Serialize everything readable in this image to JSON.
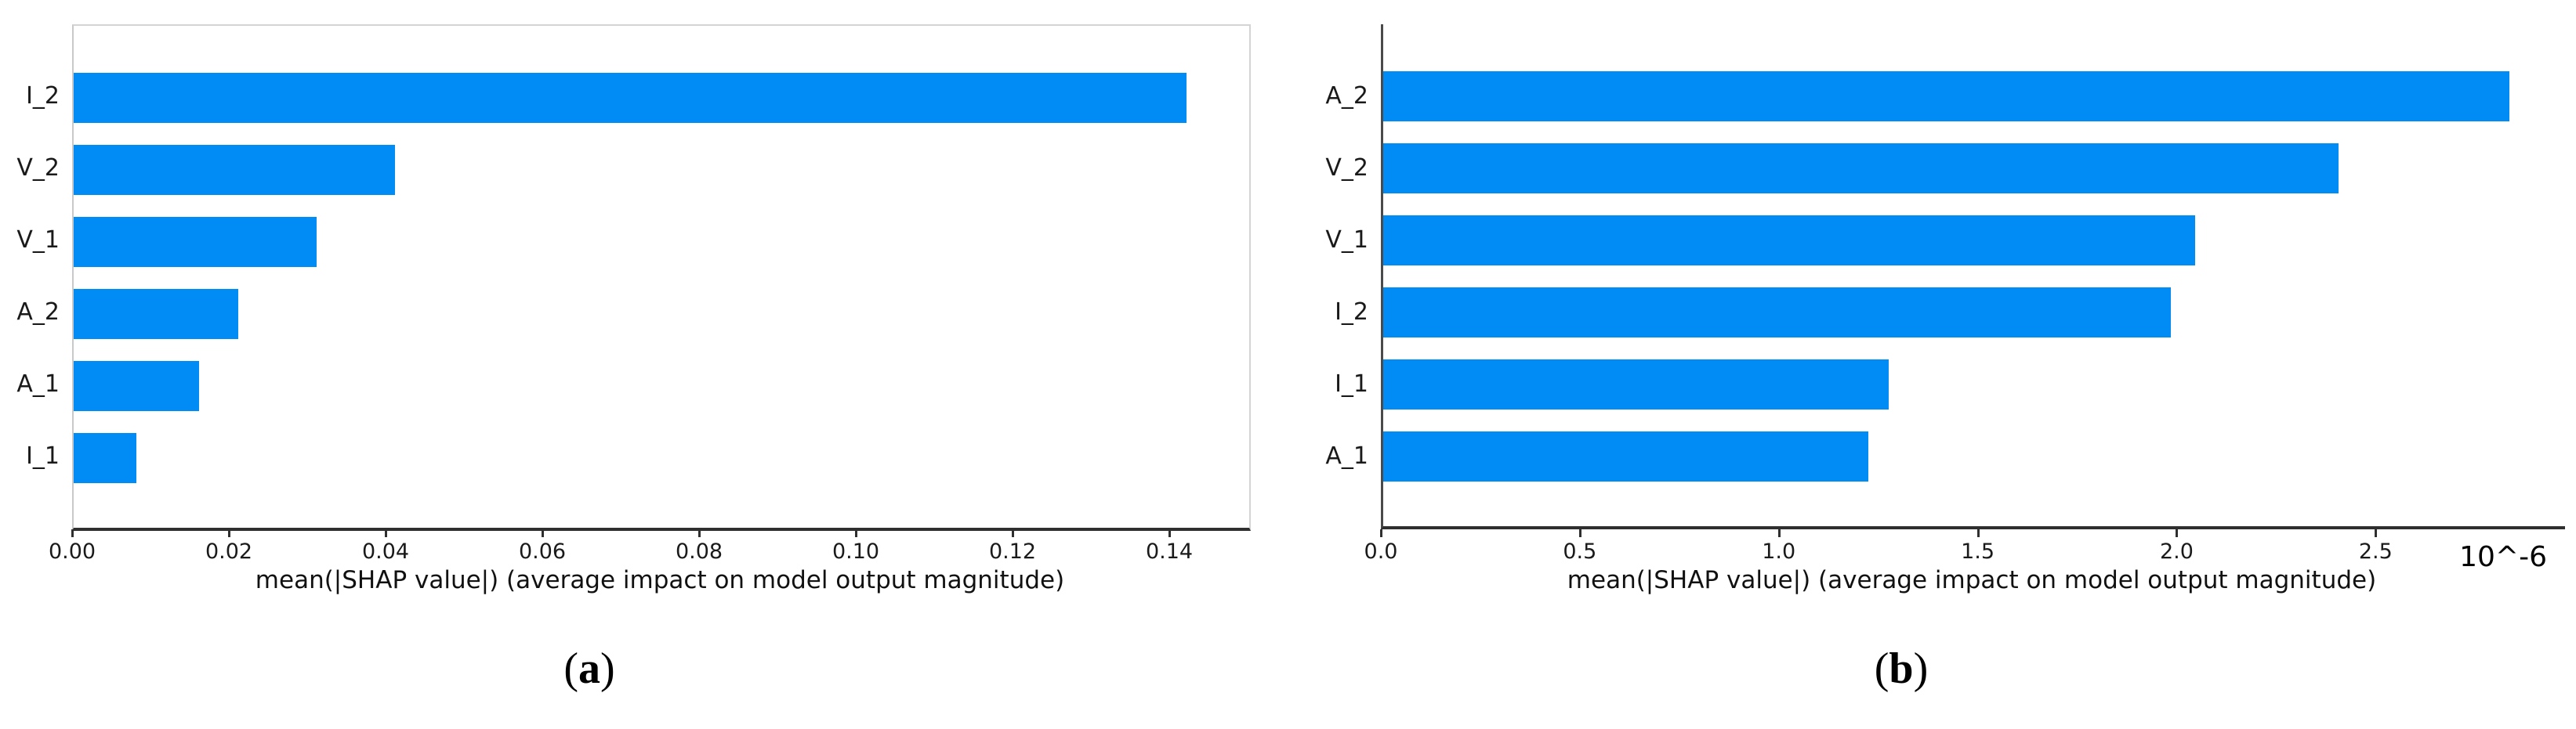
{
  "figure": {
    "captions": [
      {
        "open": "(",
        "letter": "a",
        "close": ")"
      },
      {
        "open": "(",
        "letter": "b",
        "close": ")"
      }
    ]
  },
  "chart_data": [
    {
      "type": "bar",
      "orientation": "horizontal",
      "panel": "a",
      "title": "",
      "categories": [
        "I_2",
        "V_2",
        "V_1",
        "A_2",
        "A_1",
        "I_1"
      ],
      "values": [
        0.142,
        0.041,
        0.031,
        0.021,
        0.016,
        0.008
      ],
      "xlabel": "mean(|SHAP value|) (average impact on model output magnitude)",
      "ylabel": "",
      "xlim": [
        0,
        0.15
      ],
      "xticks": [
        0,
        0.02,
        0.04,
        0.06,
        0.08,
        0.1,
        0.12,
        0.14
      ],
      "xtick_labels": [
        "0.00",
        "0.02",
        "0.04",
        "0.06",
        "0.08",
        "0.10",
        "0.12",
        "0.14"
      ],
      "bar_color": "#008bf5",
      "grid": false,
      "legend": null,
      "scale_note": ""
    },
    {
      "type": "bar",
      "orientation": "horizontal",
      "panel": "b",
      "title": "",
      "categories": [
        "A_2",
        "V_2",
        "V_1",
        "I_2",
        "I_1",
        "A_1"
      ],
      "values": [
        2.83,
        2.4,
        2.04,
        1.98,
        1.27,
        1.22
      ],
      "xlabel": "mean(|SHAP value|) (average impact on model output magnitude)",
      "ylabel": "",
      "xlim": [
        0,
        2.97
      ],
      "xticks": [
        0,
        0.5,
        1.0,
        1.5,
        2.0,
        2.5
      ],
      "xtick_labels": [
        "0.0",
        "0.5",
        "1.0",
        "1.5",
        "2.0",
        "2.5"
      ],
      "bar_color": "#008bf5",
      "grid": false,
      "legend": null,
      "scale_note": "10^-6"
    }
  ]
}
